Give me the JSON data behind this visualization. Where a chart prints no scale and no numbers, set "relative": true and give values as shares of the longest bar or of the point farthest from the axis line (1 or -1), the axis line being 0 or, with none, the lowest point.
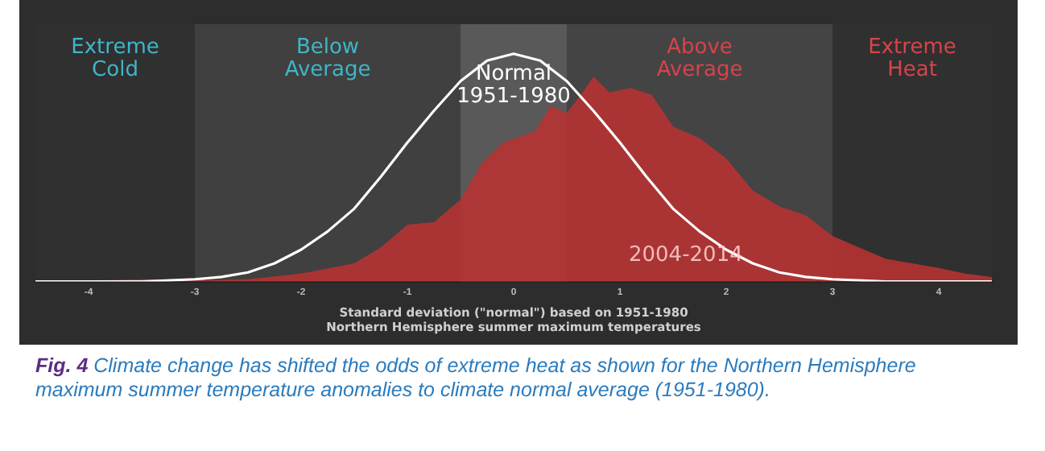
{
  "chart_data": {
    "type": "area",
    "relative": true,
    "xlabel": "Standard deviation (\"normal\") based on 1951-1980\nNorthern Hemisphere summer maximum temperatures",
    "xlim": [
      -4.5,
      4.5
    ],
    "xticks": [
      -4,
      -3,
      -2,
      -1,
      0,
      1,
      2,
      3,
      4
    ],
    "tick_labels": "x",
    "grid": false,
    "legend": false,
    "marker": "none",
    "bands": [
      {
        "axis": "x",
        "from": -4.5,
        "to": -3,
        "label": "Extreme\nCold",
        "color": "#303030"
      },
      {
        "axis": "x",
        "from": -3,
        "to": -0.5,
        "label": "Below\nAverage",
        "color": "#404040"
      },
      {
        "axis": "x",
        "from": -0.5,
        "to": 0.5,
        "color": "#595959"
      },
      {
        "axis": "x",
        "from": 0.5,
        "to": 3,
        "label": "Above\nAverage",
        "color": "#444444"
      },
      {
        "axis": "x",
        "from": 3,
        "to": 4.5,
        "label": "Extreme\nHeat",
        "color": "#303030"
      }
    ],
    "series": [
      {
        "name": "2004-2014",
        "color": "#b83232",
        "x": [
          -4.5,
          -4,
          -3.5,
          -3,
          -2.5,
          -2,
          -1.5,
          -1.25,
          -1,
          -0.75,
          -0.5,
          -0.3,
          -0.1,
          0.2,
          0.35,
          0.5,
          0.65,
          0.75,
          0.9,
          1.1,
          1.3,
          1.5,
          1.75,
          2,
          2.25,
          2.5,
          2.75,
          3,
          3.25,
          3.5,
          3.75,
          4,
          4.25,
          4.5
        ],
        "values": [
          0.005,
          0.005,
          0.01,
          0.005,
          0.01,
          0.035,
          0.08,
          0.15,
          0.25,
          0.26,
          0.36,
          0.52,
          0.61,
          0.66,
          0.77,
          0.74,
          0.83,
          0.9,
          0.83,
          0.85,
          0.82,
          0.68,
          0.63,
          0.54,
          0.4,
          0.33,
          0.29,
          0.2,
          0.15,
          0.1,
          0.08,
          0.06,
          0.035,
          0.02
        ]
      },
      {
        "name": "Normal 1951-1980",
        "type": "line",
        "color": "#ffffff",
        "x": [
          -4.5,
          -4,
          -3.5,
          -3,
          -2.75,
          -2.5,
          -2.25,
          -2,
          -1.75,
          -1.5,
          -1.25,
          -1,
          -0.75,
          -0.5,
          -0.25,
          0,
          0.25,
          0.5,
          0.75,
          1,
          1.25,
          1.5,
          1.75,
          2,
          2.25,
          2.5,
          2.75,
          3,
          3.5,
          4,
          4.5
        ],
        "values": [
          0,
          0,
          0,
          0.01,
          0.02,
          0.04,
          0.08,
          0.14,
          0.22,
          0.32,
          0.46,
          0.61,
          0.75,
          0.88,
          0.97,
          1,
          0.97,
          0.88,
          0.75,
          0.61,
          0.46,
          0.32,
          0.22,
          0.14,
          0.08,
          0.04,
          0.02,
          0.01,
          0,
          0,
          0
        ]
      }
    ],
    "annotations": [
      "Fig. 4",
      "Climate change has shifted the odds of extreme heat as shown for the Northern Hemisphere maximum summer temperature anomalies to climate normal average (1951-1980)."
    ]
  }
}
